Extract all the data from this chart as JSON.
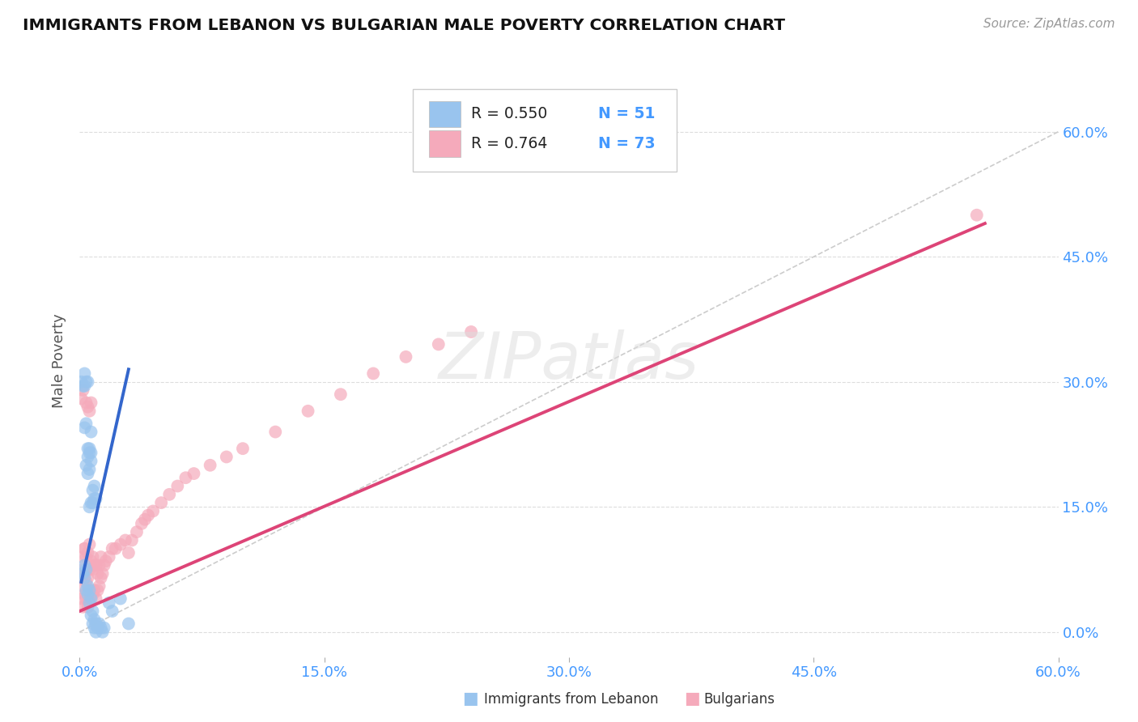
{
  "title": "IMMIGRANTS FROM LEBANON VS BULGARIAN MALE POVERTY CORRELATION CHART",
  "source": "Source: ZipAtlas.com",
  "ylabel": "Male Poverty",
  "legend_r1": "R = 0.550",
  "legend_n1": "N = 51",
  "legend_r2": "R = 0.764",
  "legend_n2": "N = 73",
  "xmin": 0.0,
  "xmax": 0.6,
  "ymin": -0.03,
  "ymax": 0.68,
  "xticks": [
    0.0,
    0.15,
    0.3,
    0.45,
    0.6
  ],
  "xtick_labels": [
    "0.0%",
    "15.0%",
    "30.0%",
    "45.0%",
    "60.0%"
  ],
  "yticks": [
    0.0,
    0.15,
    0.3,
    0.45,
    0.6
  ],
  "ytick_labels": [
    "0.0%",
    "15.0%",
    "30.0%",
    "45.0%",
    "60.0%"
  ],
  "color_lebanon": "#99C4EE",
  "color_bulgarian": "#F5AABB",
  "color_lebanon_line": "#3366CC",
  "color_bulgarian_line": "#DD4477",
  "background_color": "#FFFFFF",
  "watermark": "ZIPatlas",
  "lebanon_points": [
    [
      0.001,
      0.3
    ],
    [
      0.002,
      0.295
    ],
    [
      0.003,
      0.295
    ],
    [
      0.003,
      0.31
    ],
    [
      0.004,
      0.3
    ],
    [
      0.005,
      0.3
    ],
    [
      0.003,
      0.245
    ],
    [
      0.004,
      0.25
    ],
    [
      0.005,
      0.21
    ],
    [
      0.006,
      0.215
    ],
    [
      0.004,
      0.2
    ],
    [
      0.005,
      0.22
    ],
    [
      0.006,
      0.22
    ],
    [
      0.007,
      0.24
    ],
    [
      0.005,
      0.19
    ],
    [
      0.006,
      0.195
    ],
    [
      0.007,
      0.205
    ],
    [
      0.007,
      0.215
    ],
    [
      0.006,
      0.15
    ],
    [
      0.007,
      0.155
    ],
    [
      0.008,
      0.17
    ],
    [
      0.009,
      0.175
    ],
    [
      0.008,
      0.155
    ],
    [
      0.009,
      0.16
    ],
    [
      0.01,
      0.16
    ],
    [
      0.002,
      0.07
    ],
    [
      0.003,
      0.065
    ],
    [
      0.003,
      0.08
    ],
    [
      0.004,
      0.075
    ],
    [
      0.004,
      0.05
    ],
    [
      0.005,
      0.055
    ],
    [
      0.005,
      0.045
    ],
    [
      0.006,
      0.05
    ],
    [
      0.006,
      0.035
    ],
    [
      0.007,
      0.04
    ],
    [
      0.007,
      0.02
    ],
    [
      0.008,
      0.025
    ],
    [
      0.008,
      0.01
    ],
    [
      0.009,
      0.015
    ],
    [
      0.009,
      0.005
    ],
    [
      0.01,
      0.01
    ],
    [
      0.01,
      0.0
    ],
    [
      0.011,
      0.005
    ],
    [
      0.012,
      0.01
    ],
    [
      0.013,
      0.005
    ],
    [
      0.014,
      0.0
    ],
    [
      0.015,
      0.005
    ],
    [
      0.018,
      0.035
    ],
    [
      0.02,
      0.025
    ],
    [
      0.025,
      0.04
    ],
    [
      0.03,
      0.01
    ]
  ],
  "bulgarian_points": [
    [
      0.001,
      0.04
    ],
    [
      0.001,
      0.065
    ],
    [
      0.001,
      0.09
    ],
    [
      0.001,
      0.28
    ],
    [
      0.002,
      0.03
    ],
    [
      0.002,
      0.055
    ],
    [
      0.002,
      0.075
    ],
    [
      0.002,
      0.29
    ],
    [
      0.003,
      0.045
    ],
    [
      0.003,
      0.07
    ],
    [
      0.003,
      0.1
    ],
    [
      0.003,
      0.1
    ],
    [
      0.004,
      0.04
    ],
    [
      0.004,
      0.06
    ],
    [
      0.004,
      0.09
    ],
    [
      0.004,
      0.275
    ],
    [
      0.005,
      0.03
    ],
    [
      0.005,
      0.065
    ],
    [
      0.005,
      0.095
    ],
    [
      0.005,
      0.27
    ],
    [
      0.006,
      0.04
    ],
    [
      0.006,
      0.075
    ],
    [
      0.006,
      0.105
    ],
    [
      0.006,
      0.265
    ],
    [
      0.007,
      0.05
    ],
    [
      0.007,
      0.085
    ],
    [
      0.007,
      0.275
    ],
    [
      0.008,
      0.045
    ],
    [
      0.008,
      0.075
    ],
    [
      0.008,
      0.09
    ],
    [
      0.009,
      0.05
    ],
    [
      0.009,
      0.08
    ],
    [
      0.01,
      0.04
    ],
    [
      0.01,
      0.08
    ],
    [
      0.011,
      0.05
    ],
    [
      0.011,
      0.07
    ],
    [
      0.012,
      0.055
    ],
    [
      0.012,
      0.08
    ],
    [
      0.013,
      0.065
    ],
    [
      0.013,
      0.09
    ],
    [
      0.014,
      0.07
    ],
    [
      0.015,
      0.08
    ],
    [
      0.016,
      0.085
    ],
    [
      0.018,
      0.09
    ],
    [
      0.02,
      0.1
    ],
    [
      0.022,
      0.1
    ],
    [
      0.025,
      0.105
    ],
    [
      0.028,
      0.11
    ],
    [
      0.03,
      0.095
    ],
    [
      0.032,
      0.11
    ],
    [
      0.035,
      0.12
    ],
    [
      0.038,
      0.13
    ],
    [
      0.04,
      0.135
    ],
    [
      0.042,
      0.14
    ],
    [
      0.045,
      0.145
    ],
    [
      0.05,
      0.155
    ],
    [
      0.055,
      0.165
    ],
    [
      0.06,
      0.175
    ],
    [
      0.065,
      0.185
    ],
    [
      0.07,
      0.19
    ],
    [
      0.08,
      0.2
    ],
    [
      0.09,
      0.21
    ],
    [
      0.1,
      0.22
    ],
    [
      0.12,
      0.24
    ],
    [
      0.14,
      0.265
    ],
    [
      0.16,
      0.285
    ],
    [
      0.18,
      0.31
    ],
    [
      0.2,
      0.33
    ],
    [
      0.22,
      0.345
    ],
    [
      0.24,
      0.36
    ],
    [
      0.55,
      0.5
    ]
  ],
  "lebanon_trendline": [
    [
      0.001,
      0.06
    ],
    [
      0.03,
      0.315
    ]
  ],
  "bulgarian_trendline": [
    [
      0.0,
      0.025
    ],
    [
      0.555,
      0.49
    ]
  ],
  "diagonal_line": [
    [
      0.0,
      0.0
    ],
    [
      0.6,
      0.6
    ]
  ]
}
